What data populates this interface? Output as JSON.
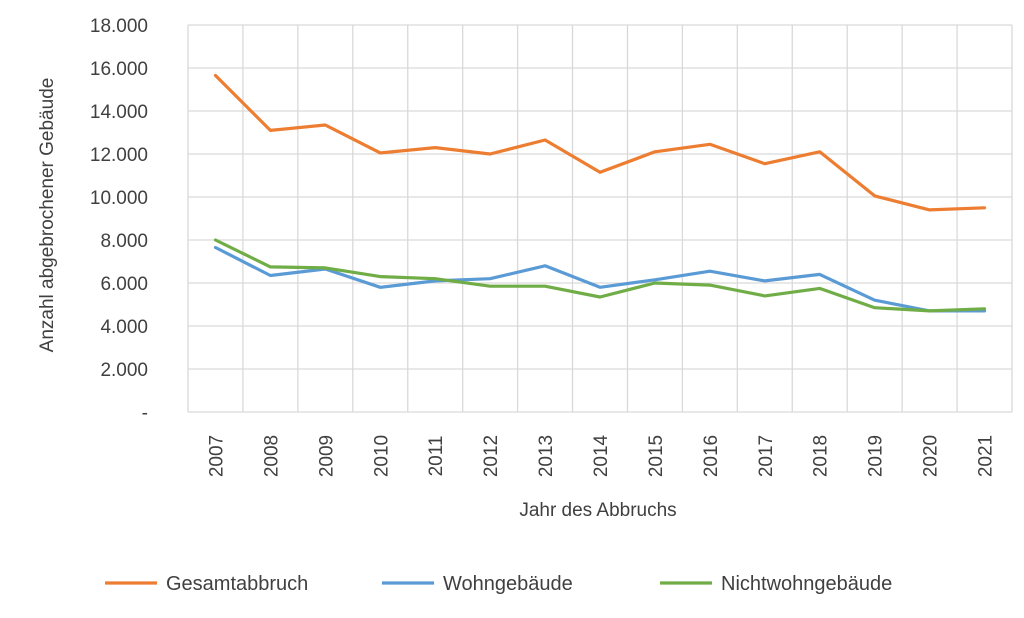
{
  "chart_data": {
    "type": "line",
    "xlabel": "Jahr des Abbruchs",
    "ylabel": "Anzahl abgebrochener Gebäude",
    "categories": [
      "2007",
      "2008",
      "2009",
      "2010",
      "2011",
      "2012",
      "2013",
      "2014",
      "2015",
      "2016",
      "2017",
      "2018",
      "2019",
      "2020",
      "2021"
    ],
    "ylim": [
      0,
      18000
    ],
    "yticks": [
      0,
      2000,
      4000,
      6000,
      8000,
      10000,
      12000,
      14000,
      16000,
      18000
    ],
    "ytick_labels": [
      "-",
      "2.000",
      "4.000",
      "6.000",
      "8.000",
      "10.000",
      "12.000",
      "14.000",
      "16.000",
      "18.000"
    ],
    "grid": true,
    "legend_position": "bottom",
    "series": [
      {
        "name": "Gesamtabbruch",
        "color": "#ED7D31",
        "values": [
          15650,
          13100,
          13350,
          12050,
          12300,
          12000,
          12650,
          11150,
          12100,
          12450,
          11550,
          12100,
          10050,
          9400,
          9500
        ]
      },
      {
        "name": "Wohngebäude",
        "color": "#5B9BD5",
        "values": [
          7650,
          6350,
          6650,
          5800,
          6100,
          6200,
          6800,
          5800,
          6150,
          6550,
          6100,
          6400,
          5200,
          4700,
          4700
        ]
      },
      {
        "name": "Nichtwohngebäude",
        "color": "#70AD47",
        "values": [
          8000,
          6750,
          6700,
          6300,
          6200,
          5850,
          5850,
          5350,
          6000,
          5900,
          5400,
          5750,
          4850,
          4700,
          4800
        ]
      }
    ]
  }
}
